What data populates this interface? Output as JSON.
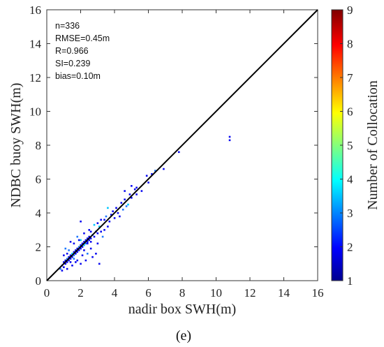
{
  "chart_data": {
    "type": "scatter",
    "title": "",
    "xlabel": "nadir box SWH(m)",
    "ylabel": "NDBC buoy SWH(m)",
    "xlim": [
      0,
      16
    ],
    "ylim": [
      0,
      16
    ],
    "xticks": [
      "0",
      "2",
      "4",
      "6",
      "8",
      "10",
      "12",
      "14",
      "16"
    ],
    "yticks": [
      "0",
      "2",
      "4",
      "6",
      "8",
      "10",
      "12",
      "14",
      "16"
    ],
    "grid": false,
    "reference_line": {
      "type": "1:1",
      "from": [
        0,
        0
      ],
      "to": [
        16,
        16
      ],
      "color": "#000000"
    },
    "stats": [
      "n=336",
      "RMSE=0.45m",
      "R=0.966",
      "SI=0.239",
      "bias=0.10m"
    ],
    "colorbar": {
      "label": "Number of Collocation",
      "range": [
        1,
        9
      ],
      "ticks": [
        "1",
        "2",
        "3",
        "4",
        "5",
        "6",
        "7",
        "8",
        "9"
      ],
      "colormap": "jet"
    },
    "point_colors": {
      "low": "#0a0af0",
      "mid": "#1e78ff",
      "high": "#00c8ff"
    },
    "points": [
      [
        0.8,
        0.7
      ],
      [
        0.9,
        0.9
      ],
      [
        1.0,
        0.8
      ],
      [
        1.0,
        1.1
      ],
      [
        1.1,
        1.0
      ],
      [
        1.1,
        1.2
      ],
      [
        1.2,
        1.1
      ],
      [
        1.2,
        1.3
      ],
      [
        1.3,
        1.2
      ],
      [
        1.3,
        1.4
      ],
      [
        1.4,
        1.3
      ],
      [
        1.4,
        1.5
      ],
      [
        1.5,
        1.4
      ],
      [
        1.5,
        1.6
      ],
      [
        1.6,
        1.5
      ],
      [
        1.6,
        1.7
      ],
      [
        1.7,
        1.6
      ],
      [
        1.7,
        1.8
      ],
      [
        1.8,
        1.7
      ],
      [
        1.8,
        1.9
      ],
      [
        1.9,
        1.8
      ],
      [
        1.9,
        2.0
      ],
      [
        2.0,
        1.9
      ],
      [
        2.0,
        2.1
      ],
      [
        2.1,
        2.0
      ],
      [
        2.1,
        2.2
      ],
      [
        2.2,
        2.1
      ],
      [
        2.2,
        2.3
      ],
      [
        2.3,
        2.2
      ],
      [
        2.3,
        2.4
      ],
      [
        2.4,
        2.3
      ],
      [
        2.4,
        2.5
      ],
      [
        2.5,
        2.4
      ],
      [
        2.5,
        2.6
      ],
      [
        2.6,
        2.5
      ],
      [
        2.7,
        2.7
      ],
      [
        2.8,
        2.6
      ],
      [
        2.9,
        2.9
      ],
      [
        3.0,
        2.8
      ],
      [
        3.1,
        3.2
      ],
      [
        1.0,
        1.5
      ],
      [
        1.2,
        0.7
      ],
      [
        1.3,
        1.8
      ],
      [
        1.5,
        0.9
      ],
      [
        1.6,
        2.2
      ],
      [
        1.8,
        1.2
      ],
      [
        1.9,
        2.4
      ],
      [
        2.1,
        1.5
      ],
      [
        2.2,
        2.8
      ],
      [
        2.4,
        1.6
      ],
      [
        2.5,
        3.0
      ],
      [
        2.6,
        1.9
      ],
      [
        2.8,
        3.3
      ],
      [
        3.0,
        2.2
      ],
      [
        3.2,
        3.6
      ],
      [
        3.4,
        3.0
      ],
      [
        3.5,
        3.8
      ],
      [
        3.6,
        3.2
      ],
      [
        3.8,
        3.9
      ],
      [
        4.0,
        3.7
      ],
      [
        4.1,
        4.3
      ],
      [
        4.2,
        4.0
      ],
      [
        4.4,
        4.6
      ],
      [
        4.5,
        4.2
      ],
      [
        4.6,
        4.8
      ],
      [
        4.8,
        4.5
      ],
      [
        4.9,
        5.1
      ],
      [
        5.0,
        4.9
      ],
      [
        5.2,
        5.4
      ],
      [
        5.3,
        5.1
      ],
      [
        1.1,
        1.9
      ],
      [
        1.4,
        2.3
      ],
      [
        2.0,
        3.5
      ],
      [
        2.3,
        1.2
      ],
      [
        2.7,
        1.4
      ],
      [
        3.1,
        1.0
      ],
      [
        2.9,
        1.6
      ],
      [
        3.3,
        2.6
      ],
      [
        3.6,
        4.3
      ],
      [
        4.3,
        3.8
      ],
      [
        0.9,
        0.6
      ],
      [
        1.7,
        1.1
      ],
      [
        2.0,
        1.0
      ],
      [
        1.2,
        1.6
      ],
      [
        1.8,
        2.6
      ],
      [
        2.6,
        2.9
      ],
      [
        3.0,
        3.4
      ],
      [
        3.4,
        3.6
      ],
      [
        3.7,
        3.5
      ],
      [
        3.9,
        4.1
      ],
      [
        4.6,
        5.3
      ],
      [
        4.7,
        4.4
      ],
      [
        5.0,
        5.6
      ],
      [
        5.3,
        5.5
      ],
      [
        5.6,
        5.3
      ],
      [
        5.9,
        6.2
      ],
      [
        6.0,
        5.8
      ],
      [
        6.2,
        6.3
      ],
      [
        6.4,
        6.5
      ],
      [
        6.9,
        6.6
      ],
      [
        7.8,
        7.6
      ],
      [
        10.8,
        8.5
      ],
      [
        10.8,
        8.3
      ],
      [
        2.2,
        1.8
      ],
      [
        2.0,
        2.4
      ],
      [
        1.6,
        1.3
      ],
      [
        1.4,
        1.1
      ],
      [
        2.4,
        2.2
      ],
      [
        2.6,
        2.3
      ],
      [
        3.2,
        2.9
      ]
    ]
  },
  "panel_label": "(e)"
}
